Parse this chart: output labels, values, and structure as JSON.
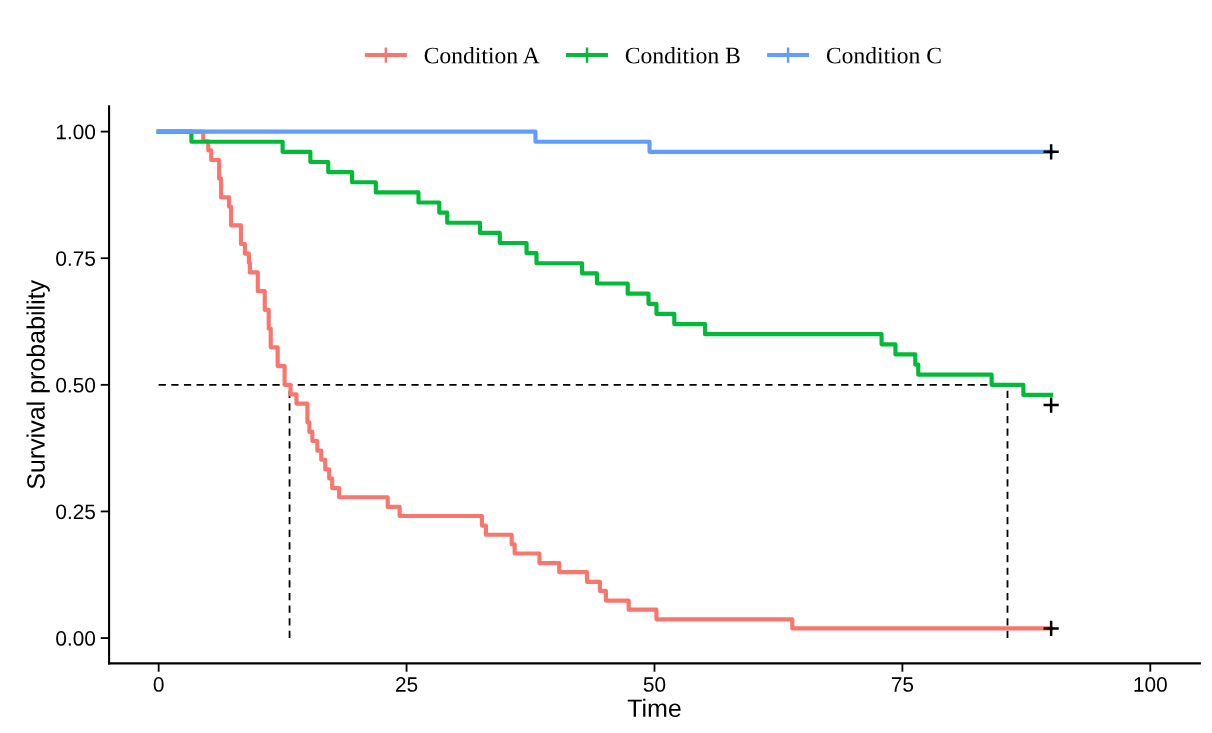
{
  "chart_data": {
    "type": "step",
    "xlabel": "Time",
    "ylabel": "Survival probability",
    "xlim": [
      -5,
      105
    ],
    "xticks": [
      0,
      25,
      50,
      75,
      100
    ],
    "ylim": [
      -0.05,
      1.05
    ],
    "yticks": [
      {
        "value": 0,
        "label": "0.00"
      },
      {
        "value": 0.25,
        "label": "0.25"
      },
      {
        "value": 0.5,
        "label": "0.50"
      },
      {
        "value": 0.75,
        "label": "0.75"
      },
      {
        "value": 1,
        "label": "1.00"
      }
    ],
    "grid": false,
    "legend": "top",
    "line_style": "solid",
    "series": [
      {
        "name": "Condition A",
        "color": "#f8766d",
        "x": [
          0,
          4.5,
          5.0,
          5.3,
          6.1,
          6.3,
          7.1,
          7.3,
          8.3,
          8.7,
          9.1,
          9.2,
          10.0,
          10.7,
          11.1,
          11.3,
          12.0,
          12.7,
          13.3,
          13.9,
          15.0,
          15.2,
          15.5,
          16.0,
          16.4,
          16.8,
          17.2,
          17.5,
          18.2,
          23.1,
          24.3,
          32.6,
          33.0,
          35.6,
          35.9,
          38.4,
          40.4,
          43.2,
          44.5,
          45.1,
          47.4,
          50.2,
          63.9,
          90
        ],
        "values": [
          1.0,
          0.981,
          0.963,
          0.944,
          0.907,
          0.87,
          0.852,
          0.815,
          0.778,
          0.759,
          0.741,
          0.722,
          0.685,
          0.648,
          0.611,
          0.574,
          0.537,
          0.5,
          0.481,
          0.463,
          0.426,
          0.407,
          0.389,
          0.37,
          0.352,
          0.333,
          0.315,
          0.296,
          0.278,
          0.259,
          0.241,
          0.222,
          0.204,
          0.185,
          0.167,
          0.148,
          0.13,
          0.111,
          0.093,
          0.074,
          0.056,
          0.037,
          0.019,
          0.019
        ]
      },
      {
        "name": "Condition B",
        "color": "#00ba38",
        "x": [
          0,
          3.3,
          12.5,
          15.3,
          17.1,
          19.5,
          21.9,
          26.2,
          28.3,
          29.1,
          32.4,
          34.4,
          37.1,
          38.1,
          42.7,
          44.2,
          47.3,
          49.4,
          50.2,
          52.0,
          55.1,
          72.9,
          74.3,
          76.3,
          76.6,
          84.0,
          87.2,
          90
        ],
        "values": [
          1,
          0.98,
          0.96,
          0.94,
          0.92,
          0.9,
          0.88,
          0.86,
          0.84,
          0.82,
          0.8,
          0.78,
          0.76,
          0.74,
          0.72,
          0.7,
          0.68,
          0.66,
          0.64,
          0.62,
          0.6,
          0.58,
          0.56,
          0.54,
          0.52,
          0.5,
          0.48,
          0.48
        ]
      },
      {
        "name": "Condition C",
        "color": "#619cff",
        "x": [
          0,
          38.0,
          49.5,
          90
        ],
        "values": [
          1,
          0.98,
          0.96,
          0.96
        ]
      },
      {
        "type": "scatter",
        "marker": "cross",
        "color": "#000000",
        "x": [
          90,
          90,
          90
        ],
        "values": [
          0.96,
          0.46,
          0.019
        ]
      }
    ],
    "ref_lines": [
      {
        "axis": "y",
        "value": 0.5,
        "color": "#000000",
        "line_style": "dashed"
      },
      {
        "axis": "x",
        "value": 13.2,
        "color": "#000000",
        "line_style": "dashed"
      },
      {
        "axis": "x",
        "value": 85.6,
        "color": "#000000",
        "line_style": "dashed"
      }
    ]
  }
}
